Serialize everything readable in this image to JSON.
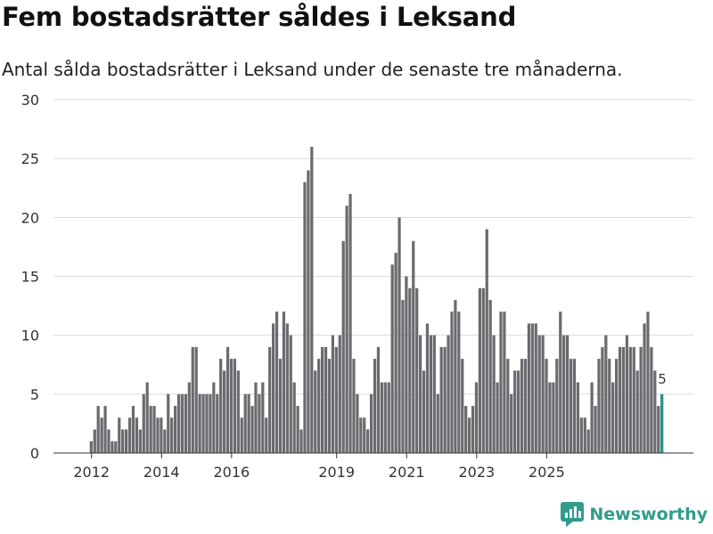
{
  "title": "Fem bostadsrätter såldes i Leksand",
  "subtitle": "Antal sålda bostadsrätter i Leksand under de senaste tre månaderna.",
  "brand": "Newsworthy",
  "colors": {
    "bar": "#6b6a6f",
    "highlight": "#1f9488",
    "grid": "#d9d9d9",
    "axis": "#333333",
    "brand": "#2f9c8c"
  },
  "chart_data": {
    "type": "bar",
    "title": "Fem bostadsrätter såldes i Leksand",
    "ylabel": "",
    "xlabel": "",
    "ylim": [
      0,
      30
    ],
    "yticks": [
      0,
      5,
      10,
      15,
      20,
      25,
      30
    ],
    "xticks": [
      {
        "label": "2012",
        "index": 4
      },
      {
        "label": "2014",
        "index": 24
      },
      {
        "label": "2016",
        "index": 44
      },
      {
        "label": "2019",
        "index": 74
      },
      {
        "label": "2021",
        "index": 94
      },
      {
        "label": "2023",
        "index": 114
      },
      {
        "label": "2025",
        "index": 134
      }
    ],
    "values": [
      0,
      0,
      0,
      0,
      1,
      2,
      4,
      3,
      4,
      2,
      1,
      1,
      3,
      2,
      2,
      3,
      4,
      3,
      2,
      5,
      6,
      4,
      4,
      3,
      3,
      2,
      5,
      3,
      4,
      5,
      5,
      5,
      6,
      9,
      9,
      5,
      5,
      5,
      5,
      6,
      5,
      8,
      7,
      9,
      8,
      8,
      7,
      3,
      5,
      5,
      4,
      6,
      5,
      6,
      3,
      9,
      11,
      12,
      8,
      12,
      11,
      10,
      6,
      4,
      2,
      23,
      24,
      26,
      7,
      8,
      9,
      9,
      8,
      10,
      9,
      10,
      18,
      21,
      22,
      8,
      5,
      3,
      3,
      2,
      5,
      8,
      9,
      6,
      6,
      6,
      16,
      17,
      20,
      13,
      15,
      14,
      18,
      14,
      10,
      7,
      11,
      10,
      10,
      5,
      9,
      9,
      10,
      12,
      13,
      12,
      8,
      4,
      3,
      4,
      6,
      14,
      14,
      19,
      13,
      10,
      6,
      12,
      12,
      8,
      5,
      7,
      7,
      8,
      8,
      11,
      11,
      11,
      10,
      10,
      8,
      6,
      6,
      8,
      12,
      10,
      10,
      8,
      8,
      6,
      3,
      3,
      2,
      6,
      4,
      8,
      9,
      10,
      8,
      6,
      8,
      9,
      9,
      10,
      9,
      9,
      7,
      9,
      11,
      12,
      9,
      7,
      4,
      5
    ],
    "highlight_last": true,
    "last_label": "5"
  }
}
